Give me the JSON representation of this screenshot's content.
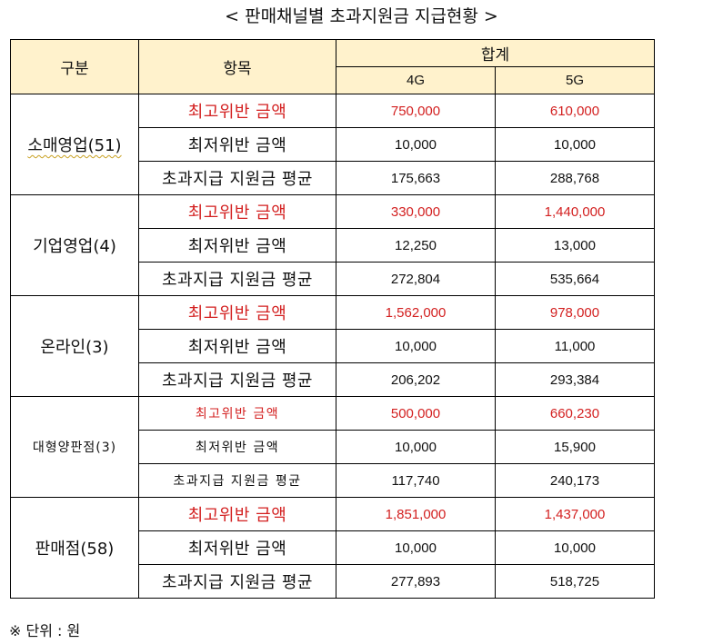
{
  "title": "< 판매채널별 초과지원금 지급현황 >",
  "header": {
    "category": "구분",
    "item": "항목",
    "total": "합계",
    "col_4g": "4G",
    "col_5g": "5G"
  },
  "groups": [
    {
      "name": "소매영업(51)",
      "rows": [
        {
          "item": "최고위반 금액",
          "v4g": "750,000",
          "v5g": "610,000"
        },
        {
          "item": "최저위반 금액",
          "v4g": "10,000",
          "v5g": "10,000"
        },
        {
          "item": "초과지급 지원금 평균",
          "v4g": "175,663",
          "v5g": "288,768"
        }
      ]
    },
    {
      "name": "기업영업(4)",
      "rows": [
        {
          "item": "최고위반 금액",
          "v4g": "330,000",
          "v5g": "1,440,000"
        },
        {
          "item": "최저위반 금액",
          "v4g": "12,250",
          "v5g": "13,000"
        },
        {
          "item": "초과지급 지원금 평균",
          "v4g": "272,804",
          "v5g": "535,664"
        }
      ]
    },
    {
      "name": "온라인(3)",
      "rows": [
        {
          "item": "최고위반 금액",
          "v4g": "1,562,000",
          "v5g": "978,000"
        },
        {
          "item": "최저위반 금액",
          "v4g": "10,000",
          "v5g": "11,000"
        },
        {
          "item": "초과지급 지원금 평균",
          "v4g": "206,202",
          "v5g": "293,384"
        }
      ]
    },
    {
      "name": "대형양판점(3)",
      "rows": [
        {
          "item": "최고위반 금액",
          "v4g": "500,000",
          "v5g": "660,230"
        },
        {
          "item": "최저위반 금액",
          "v4g": "10,000",
          "v5g": "15,900"
        },
        {
          "item": "초과지급 지원금 평균",
          "v4g": "117,740",
          "v5g": "240,173"
        }
      ]
    },
    {
      "name": "판매점(58)",
      "rows": [
        {
          "item": "최고위반 금액",
          "v4g": "1,851,000",
          "v5g": "1,437,000"
        },
        {
          "item": "최저위반 금액",
          "v4g": "10,000",
          "v5g": "10,000"
        },
        {
          "item": "초과지급 지원금 평균",
          "v4g": "277,893",
          "v5g": "518,725"
        }
      ]
    }
  ],
  "note": "※ 단위 : 원",
  "colors": {
    "header_bg": "#fff2cc",
    "highlight_text": "#d32020"
  }
}
